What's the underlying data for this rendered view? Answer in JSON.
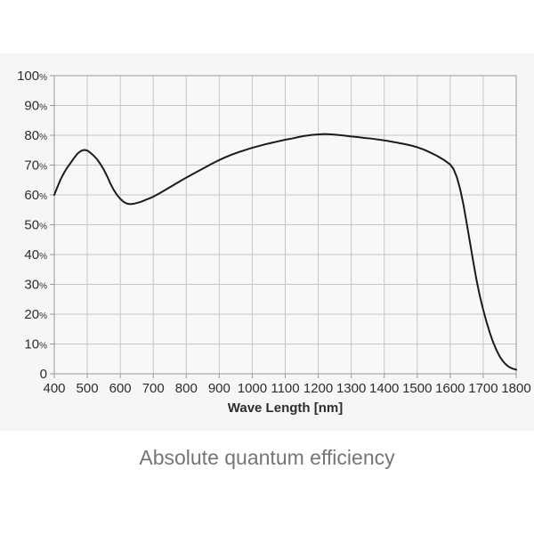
{
  "page": {
    "caption": "Absolute quantum efficiency"
  },
  "chart_data": {
    "type": "line",
    "title": "Absolute quantum efficiency",
    "xlabel": "Wave Length [nm]",
    "ylabel": "",
    "xlim": [
      400,
      1800
    ],
    "ylim": [
      0,
      100
    ],
    "grid": true,
    "legend": "none",
    "x_ticks": [
      400,
      500,
      600,
      700,
      800,
      900,
      1000,
      1100,
      1200,
      1300,
      1400,
      1500,
      1600,
      1700,
      1800
    ],
    "y_tick_labels": [
      "100%",
      "90%",
      "80%",
      "70%",
      "60%",
      "50%",
      "40%",
      "30%",
      "20%",
      "10%",
      "0"
    ],
    "colors": {
      "page_bg": "#ffffff",
      "panel_bg": "#f6f6f6",
      "plot_bg": "#f8f8f8",
      "grid": "#c6c6c6",
      "axis": "#9a9a9a",
      "curve": "#1b1b1b",
      "tick_text": "#2d2d2d",
      "axis_title_text": "#2d2d2d",
      "caption_text": "#757575"
    },
    "series": [
      {
        "name": "Absolute quantum efficiency",
        "points": [
          [
            400,
            60
          ],
          [
            410,
            62.8
          ],
          [
            420,
            65.4
          ],
          [
            430,
            67.5
          ],
          [
            440,
            69.3
          ],
          [
            450,
            70.8
          ],
          [
            460,
            72.4
          ],
          [
            470,
            73.8
          ],
          [
            480,
            74.7
          ],
          [
            490,
            75.1
          ],
          [
            500,
            74.9
          ],
          [
            510,
            74.1
          ],
          [
            520,
            73.1
          ],
          [
            530,
            71.9
          ],
          [
            540,
            70.3
          ],
          [
            550,
            68.5
          ],
          [
            560,
            66.3
          ],
          [
            570,
            63.8
          ],
          [
            580,
            61.7
          ],
          [
            590,
            60
          ],
          [
            600,
            58.7
          ],
          [
            610,
            57.7
          ],
          [
            620,
            57.1
          ],
          [
            630,
            56.9
          ],
          [
            640,
            57
          ],
          [
            650,
            57.3
          ],
          [
            660,
            57.6
          ],
          [
            670,
            58
          ],
          [
            680,
            58.5
          ],
          [
            690,
            58.9
          ],
          [
            700,
            59.4
          ],
          [
            720,
            60.6
          ],
          [
            740,
            61.9
          ],
          [
            760,
            63.2
          ],
          [
            780,
            64.5
          ],
          [
            800,
            65.8
          ],
          [
            820,
            67
          ],
          [
            840,
            68.2
          ],
          [
            860,
            69.4
          ],
          [
            880,
            70.6
          ],
          [
            900,
            71.7
          ],
          [
            920,
            72.7
          ],
          [
            940,
            73.6
          ],
          [
            960,
            74.4
          ],
          [
            980,
            75.1
          ],
          [
            1000,
            75.8
          ],
          [
            1020,
            76.4
          ],
          [
            1040,
            77
          ],
          [
            1060,
            77.5
          ],
          [
            1080,
            78
          ],
          [
            1100,
            78.5
          ],
          [
            1120,
            78.9
          ],
          [
            1140,
            79.4
          ],
          [
            1160,
            79.8
          ],
          [
            1180,
            80.1
          ],
          [
            1200,
            80.3
          ],
          [
            1220,
            80.4
          ],
          [
            1240,
            80.3
          ],
          [
            1260,
            80.1
          ],
          [
            1280,
            79.9
          ],
          [
            1300,
            79.6
          ],
          [
            1320,
            79.4
          ],
          [
            1340,
            79.1
          ],
          [
            1360,
            78.9
          ],
          [
            1380,
            78.6
          ],
          [
            1400,
            78.3
          ],
          [
            1420,
            77.9
          ],
          [
            1440,
            77.5
          ],
          [
            1460,
            77.1
          ],
          [
            1480,
            76.6
          ],
          [
            1500,
            76
          ],
          [
            1520,
            75.2
          ],
          [
            1540,
            74.2
          ],
          [
            1560,
            73.1
          ],
          [
            1580,
            71.8
          ],
          [
            1600,
            70.2
          ],
          [
            1610,
            68.7
          ],
          [
            1620,
            66
          ],
          [
            1630,
            62
          ],
          [
            1640,
            56.8
          ],
          [
            1650,
            50.5
          ],
          [
            1660,
            44
          ],
          [
            1670,
            37.5
          ],
          [
            1680,
            31.3
          ],
          [
            1690,
            26
          ],
          [
            1700,
            21.5
          ],
          [
            1710,
            17.4
          ],
          [
            1720,
            13.8
          ],
          [
            1730,
            10.6
          ],
          [
            1740,
            8
          ],
          [
            1750,
            5.8
          ],
          [
            1760,
            4.2
          ],
          [
            1770,
            3
          ],
          [
            1780,
            2.2
          ],
          [
            1790,
            1.7
          ],
          [
            1800,
            1.4
          ]
        ]
      }
    ]
  }
}
